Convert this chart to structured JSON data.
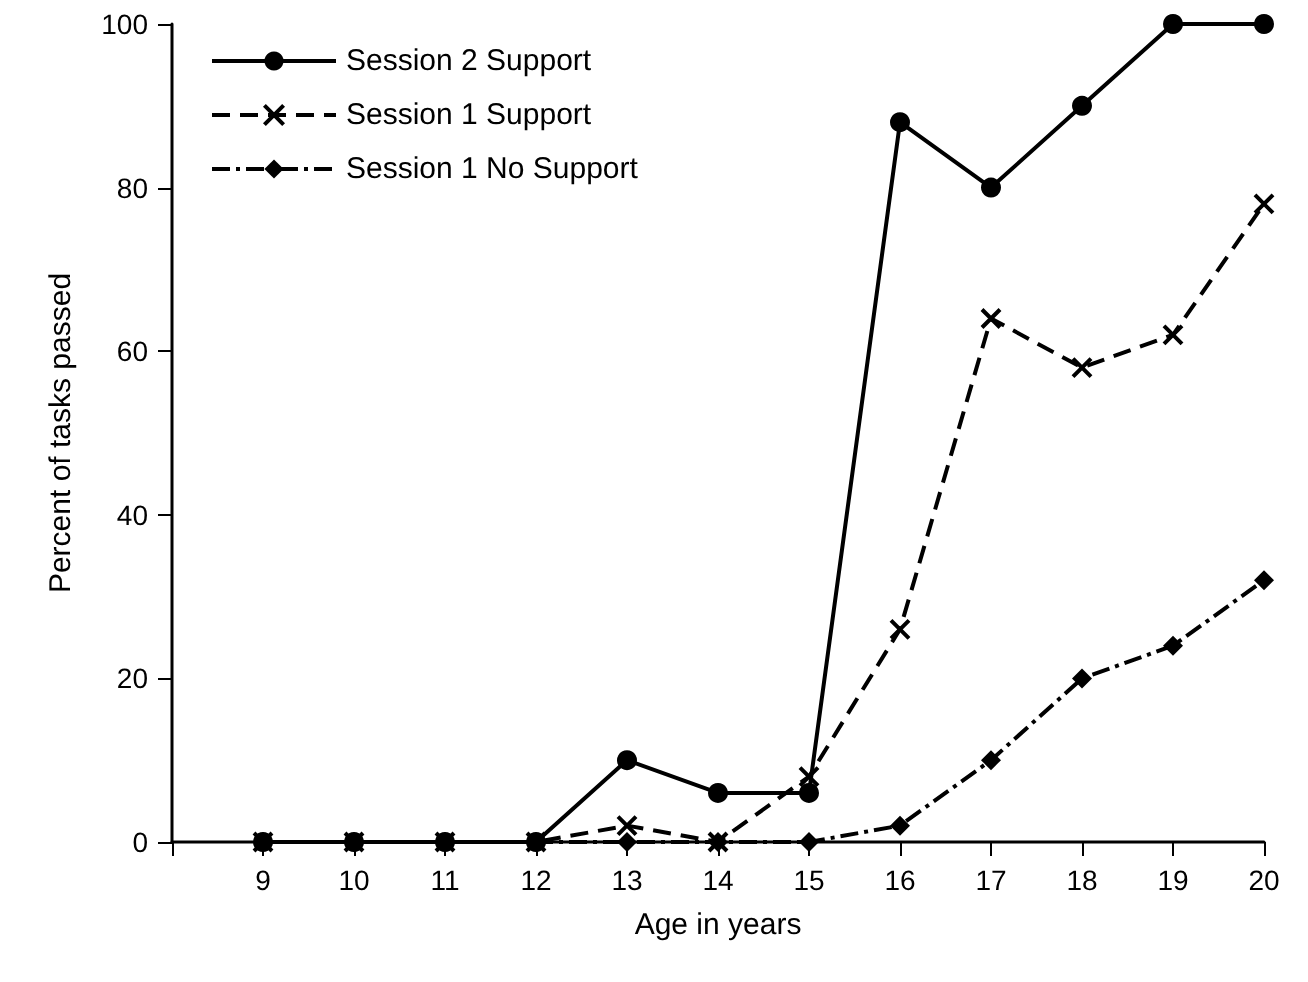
{
  "chart_data": {
    "type": "line",
    "xlabel": "Age in years",
    "ylabel": "Percent of tasks passed",
    "x": [
      9,
      10,
      11,
      12,
      13,
      14,
      15,
      16,
      17,
      18,
      19,
      20
    ],
    "xlim": [
      8,
      20
    ],
    "xticks": [
      {
        "value": 8,
        "label": null
      },
      9,
      10,
      11,
      12,
      13,
      14,
      15,
      16,
      17,
      18,
      19,
      20
    ],
    "ylim": [
      0,
      100
    ],
    "yticks": [
      0,
      20,
      40,
      60,
      80,
      100
    ],
    "grid": false,
    "legend": "top left",
    "series": [
      {
        "name": "Session 2 Support",
        "color": "#000000",
        "marker": "circle",
        "line_style": "solid",
        "values": [
          0,
          0,
          0,
          0,
          10,
          6,
          6,
          88,
          80,
          90,
          100,
          100
        ]
      },
      {
        "name": "Session 1 Support",
        "color": "#000000",
        "marker": "cross",
        "line_style": "dashed",
        "values": [
          0,
          0,
          0,
          0,
          2,
          0,
          8,
          26,
          64,
          58,
          62,
          78
        ]
      },
      {
        "name": "Session 1 No Support",
        "color": "#000000",
        "marker": "diamond",
        "line_style": "dashdot",
        "values": [
          0,
          0,
          0,
          0,
          0,
          0,
          0,
          2,
          10,
          20,
          24,
          32
        ]
      }
    ]
  }
}
